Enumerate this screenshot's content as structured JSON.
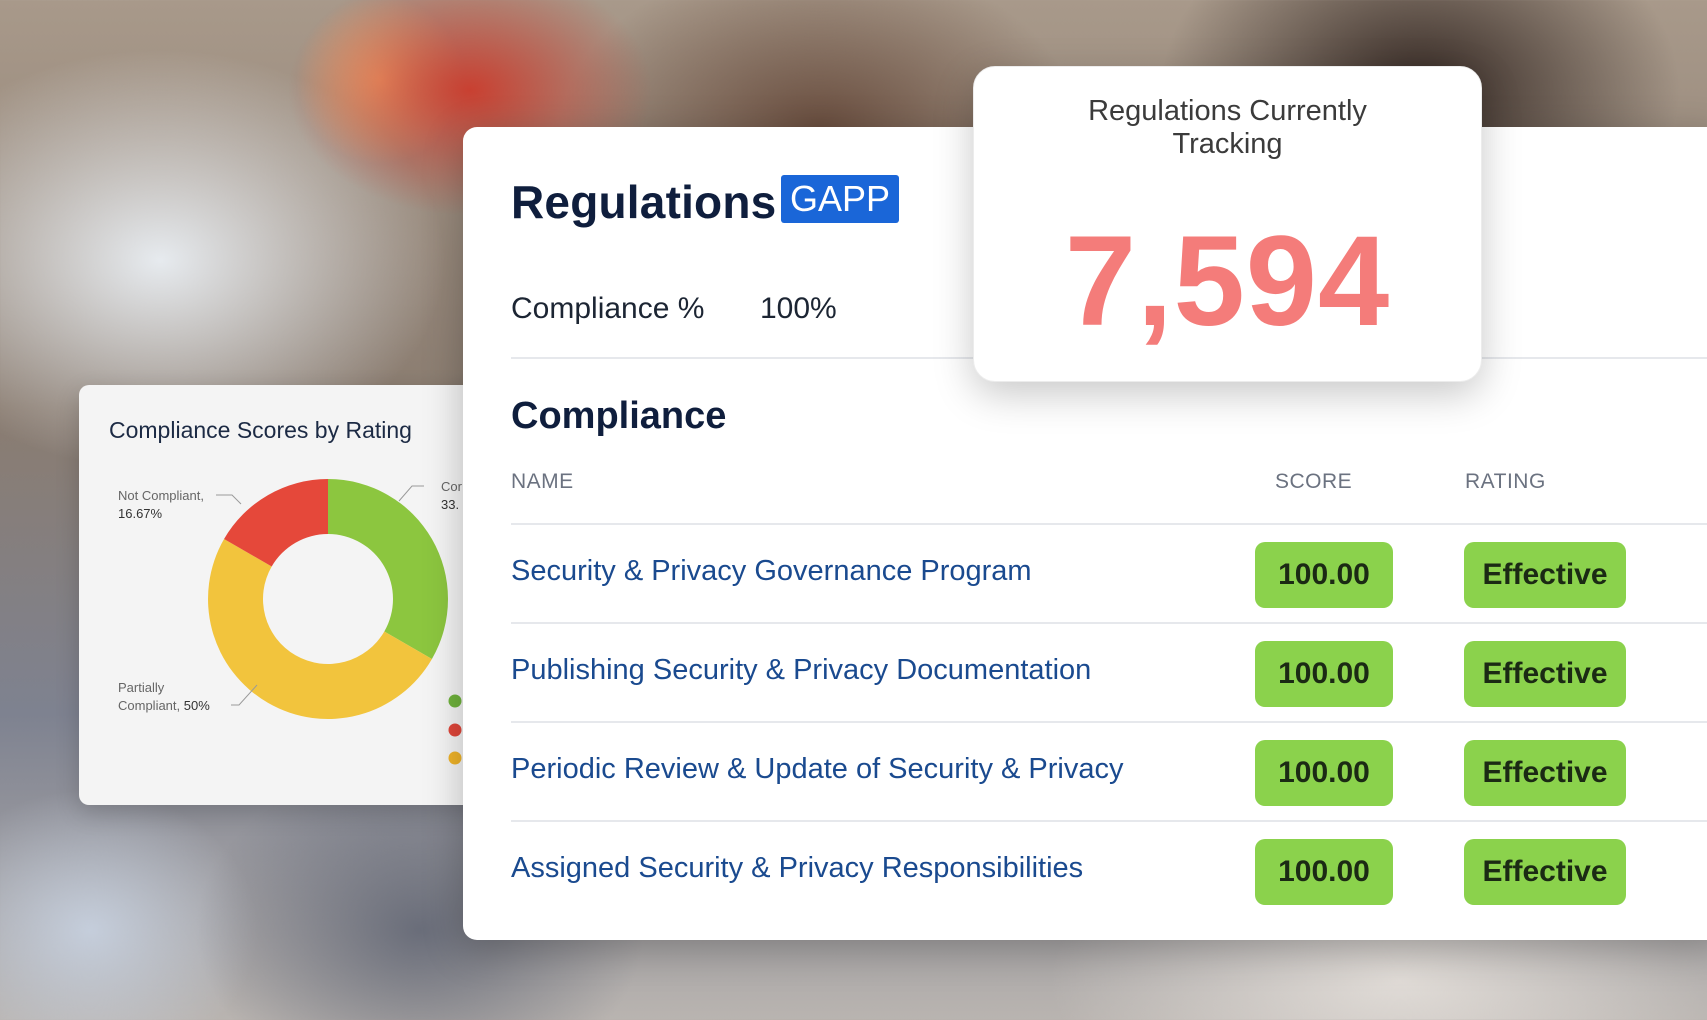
{
  "chart_card": {
    "title": "Compliance Scores by Rating",
    "labels": {
      "not_compliant_name": "Not Compliant,",
      "not_compliant_pct": "16.67%",
      "compliant_name": "Cor",
      "compliant_pct": "33.",
      "partial_name_1": "Partially",
      "partial_name_2": "Compliant,",
      "partial_pct": "50%"
    },
    "legend_colors": [
      "#6fb33c",
      "#e0463a",
      "#f0b429"
    ]
  },
  "chart_data": {
    "type": "pie",
    "title": "Compliance Scores by Rating",
    "categories": [
      "Compliant",
      "Not Compliant",
      "Partially Compliant"
    ],
    "values": [
      33.33,
      16.67,
      50
    ],
    "colors": [
      "#8cc63f",
      "#e5483a",
      "#f2c43d"
    ],
    "donut": true
  },
  "main": {
    "title": "Regulations",
    "badge": "GAPP",
    "compliance_label": "Compliance %",
    "compliance_value": "100%",
    "section_title": "Compliance",
    "columns": {
      "name": "NAME",
      "score": "SCORE",
      "rating": "RATING"
    },
    "rows": [
      {
        "name": "Security & Privacy Governance Program",
        "score": "100.00",
        "rating": "Effective"
      },
      {
        "name": "Publishing Security & Privacy Documentation",
        "score": "100.00",
        "rating": "Effective"
      },
      {
        "name": "Periodic Review & Update of Security & Privacy",
        "score": "100.00",
        "rating": "Effective"
      },
      {
        "name": "Assigned Security & Privacy Responsibilities",
        "score": "100.00",
        "rating": "Effective"
      }
    ]
  },
  "tracking": {
    "title_line1": "Regulations Currently",
    "title_line2": "Tracking",
    "value": "7,594"
  },
  "colors": {
    "accent_badge": "#1a66d8",
    "pill_green": "#8bd24c",
    "tracking_number": "#f47c7a",
    "link_text": "#1a4a8f"
  }
}
